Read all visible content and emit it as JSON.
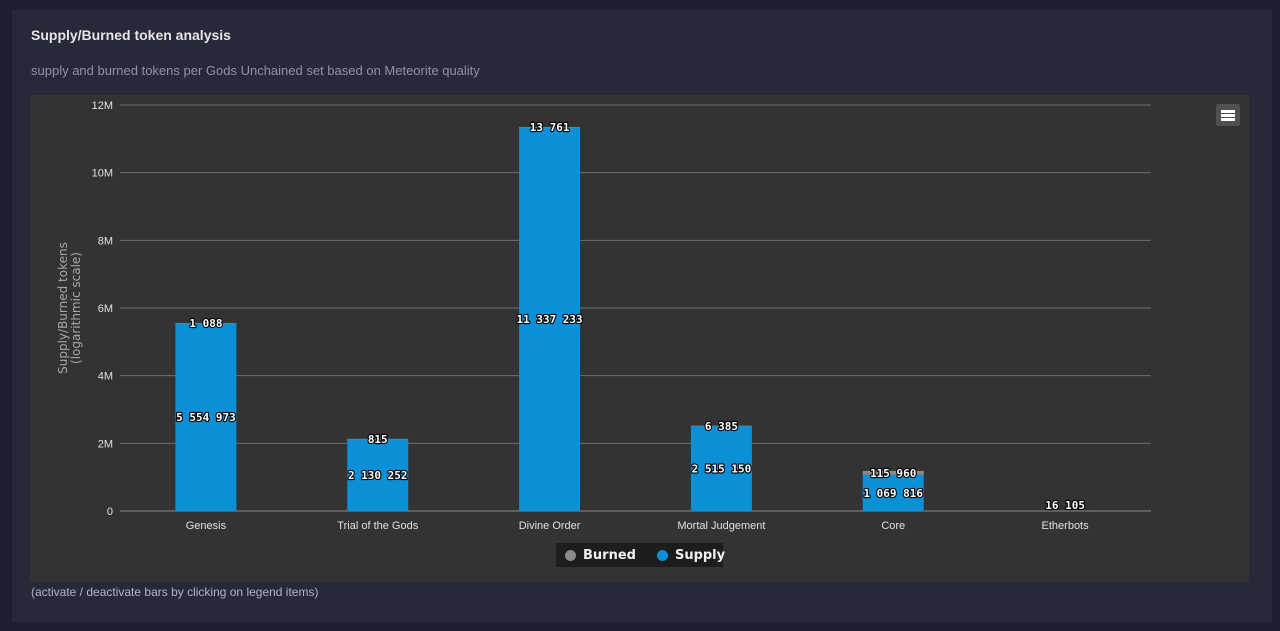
{
  "header": {
    "title": "Supply/Burned token analysis",
    "subtitle": "supply and burned tokens per Gods Unchained set based on Meteorite quality"
  },
  "legend": {
    "burned_label": "Burned",
    "supply_label": "Supply"
  },
  "footer": {
    "note": "(activate / deactivate bars by clicking on legend items)"
  },
  "colors": {
    "supply": "#0b8fd6",
    "burned": "#8a8a8a"
  },
  "chart_data": {
    "type": "bar",
    "stacked": true,
    "ylabel_lines": [
      "Supply/Burned tokens",
      "(logarithmic scale)"
    ],
    "ylim": [
      0,
      12000000
    ],
    "yticks": [
      {
        "value": 0,
        "label": "0"
      },
      {
        "value": 2000000,
        "label": "2M"
      },
      {
        "value": 4000000,
        "label": "4M"
      },
      {
        "value": 6000000,
        "label": "6M"
      },
      {
        "value": 8000000,
        "label": "8M"
      },
      {
        "value": 10000000,
        "label": "10M"
      },
      {
        "value": 12000000,
        "label": "12M"
      }
    ],
    "grid": true,
    "legend_position": "bottom",
    "categories": [
      "Genesis",
      "Trial of the Gods",
      "Divine Order",
      "Mortal Judgement",
      "Core",
      "Etherbots"
    ],
    "series": [
      {
        "name": "Supply",
        "color": "#0b8fd6",
        "values": [
          5554973,
          2130252,
          11337233,
          2515150,
          1069816,
          null
        ],
        "labels": [
          "5 554 973",
          "2 130 252",
          "11 337 233",
          "2 515 150",
          "1 069 816",
          ""
        ]
      },
      {
        "name": "Burned",
        "color": "#8a8a8a",
        "values": [
          1088,
          815,
          13761,
          6385,
          115960,
          16105
        ],
        "labels": [
          "1 088",
          "815",
          "13 761",
          "6 385",
          "115 960",
          "16 105"
        ]
      }
    ]
  }
}
